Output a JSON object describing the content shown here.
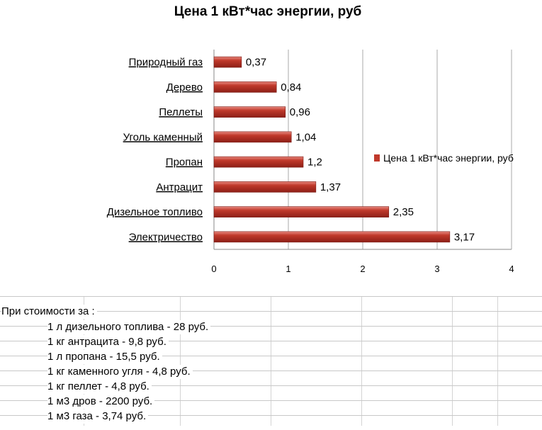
{
  "chart_data": {
    "type": "bar",
    "orientation": "horizontal",
    "title": "Цена 1 кВт*час энергии, руб",
    "categories": [
      "Природный газ",
      "Дерево",
      "Пеллеты",
      "Уголь каменный",
      "Пропан",
      "Антрацит",
      "Дизельное топливо",
      "Электричество"
    ],
    "series": [
      {
        "name": "Цена 1 кВт*час энергии, руб",
        "values": [
          0.37,
          0.84,
          0.96,
          1.04,
          1.2,
          1.37,
          2.35,
          3.17
        ],
        "labels": [
          "0,37",
          "0,84",
          "0,96",
          "1,04",
          "1,2",
          "1,37",
          "2,35",
          "3,17"
        ]
      }
    ],
    "xlim": [
      0,
      4
    ],
    "xticks": [
      "0",
      "1",
      "2",
      "3",
      "4"
    ],
    "grid": true,
    "legend_position": "right",
    "bar_color": "#c0392b"
  },
  "sheet": {
    "header": "При стоимости за :",
    "lines": [
      "1 л дизельного топлива - 28 руб.",
      "1 кг антрацита - 9,8 руб.",
      "1 л пропана - 15,5 руб.",
      "1 кг каменного угля - 4,8 руб.",
      "1 кг пеллет - 4,8 руб.",
      "1 м3 дров - 2200 руб.",
      "1 м3 газа - 3,74 руб."
    ]
  }
}
